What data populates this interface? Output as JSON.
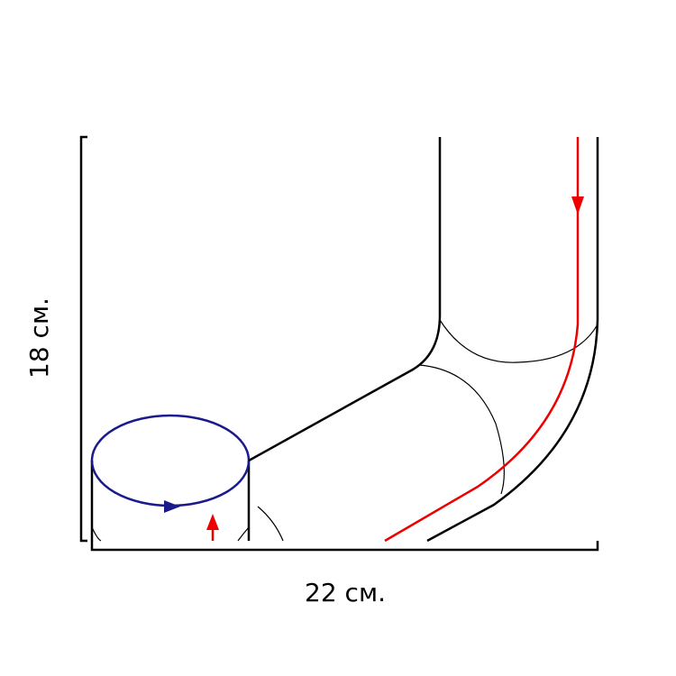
{
  "dimensions": {
    "height_label": "18 см.",
    "width_label": "22 см."
  }
}
